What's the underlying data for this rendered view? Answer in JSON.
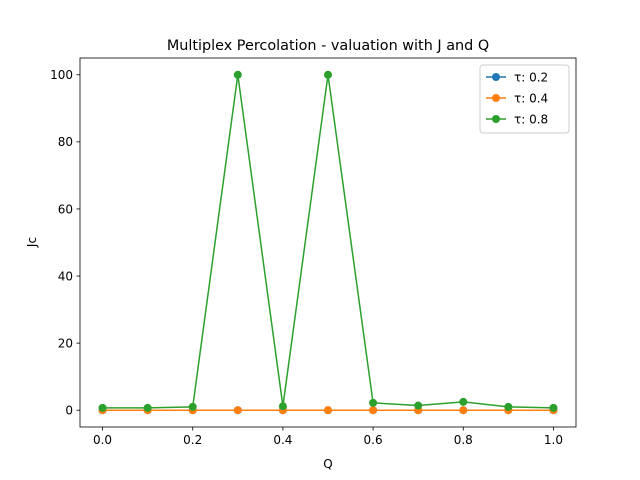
{
  "chart_data": {
    "type": "line",
    "title": "Multiplex Percolation - valuation with J and Q",
    "xlabel": "Q",
    "ylabel": "Jc",
    "xlim": [
      -0.05,
      1.05
    ],
    "ylim": [
      -5,
      105
    ],
    "x_ticks": [
      "0.0",
      "0.2",
      "0.4",
      "0.6",
      "0.8",
      "1.0"
    ],
    "x_tick_values": [
      0.0,
      0.2,
      0.4,
      0.6,
      0.8,
      1.0
    ],
    "y_ticks": [
      "0",
      "20",
      "40",
      "60",
      "80",
      "100"
    ],
    "y_tick_values": [
      0,
      20,
      40,
      60,
      80,
      100
    ],
    "grid": false,
    "legend_position": "top-right",
    "x": [
      0.0,
      0.1,
      0.2,
      0.3,
      0.4,
      0.5,
      0.6,
      0.7,
      0.8,
      0.9,
      1.0
    ],
    "series": [
      {
        "name": "τ: 0.2",
        "color": "#1f77b4",
        "values": [
          0,
          0,
          0,
          0,
          0,
          0,
          0,
          0,
          0,
          0,
          0
        ]
      },
      {
        "name": "τ: 0.4",
        "color": "#ff7f0e",
        "values": [
          0,
          0,
          0,
          0,
          0,
          0,
          0,
          0,
          0,
          0,
          0
        ]
      },
      {
        "name": "τ: 0.8",
        "color": "#2ca02c",
        "values": [
          0.7,
          0.7,
          1.0,
          100,
          1.2,
          100,
          2.2,
          1.4,
          2.5,
          1.0,
          0.7
        ]
      }
    ]
  }
}
